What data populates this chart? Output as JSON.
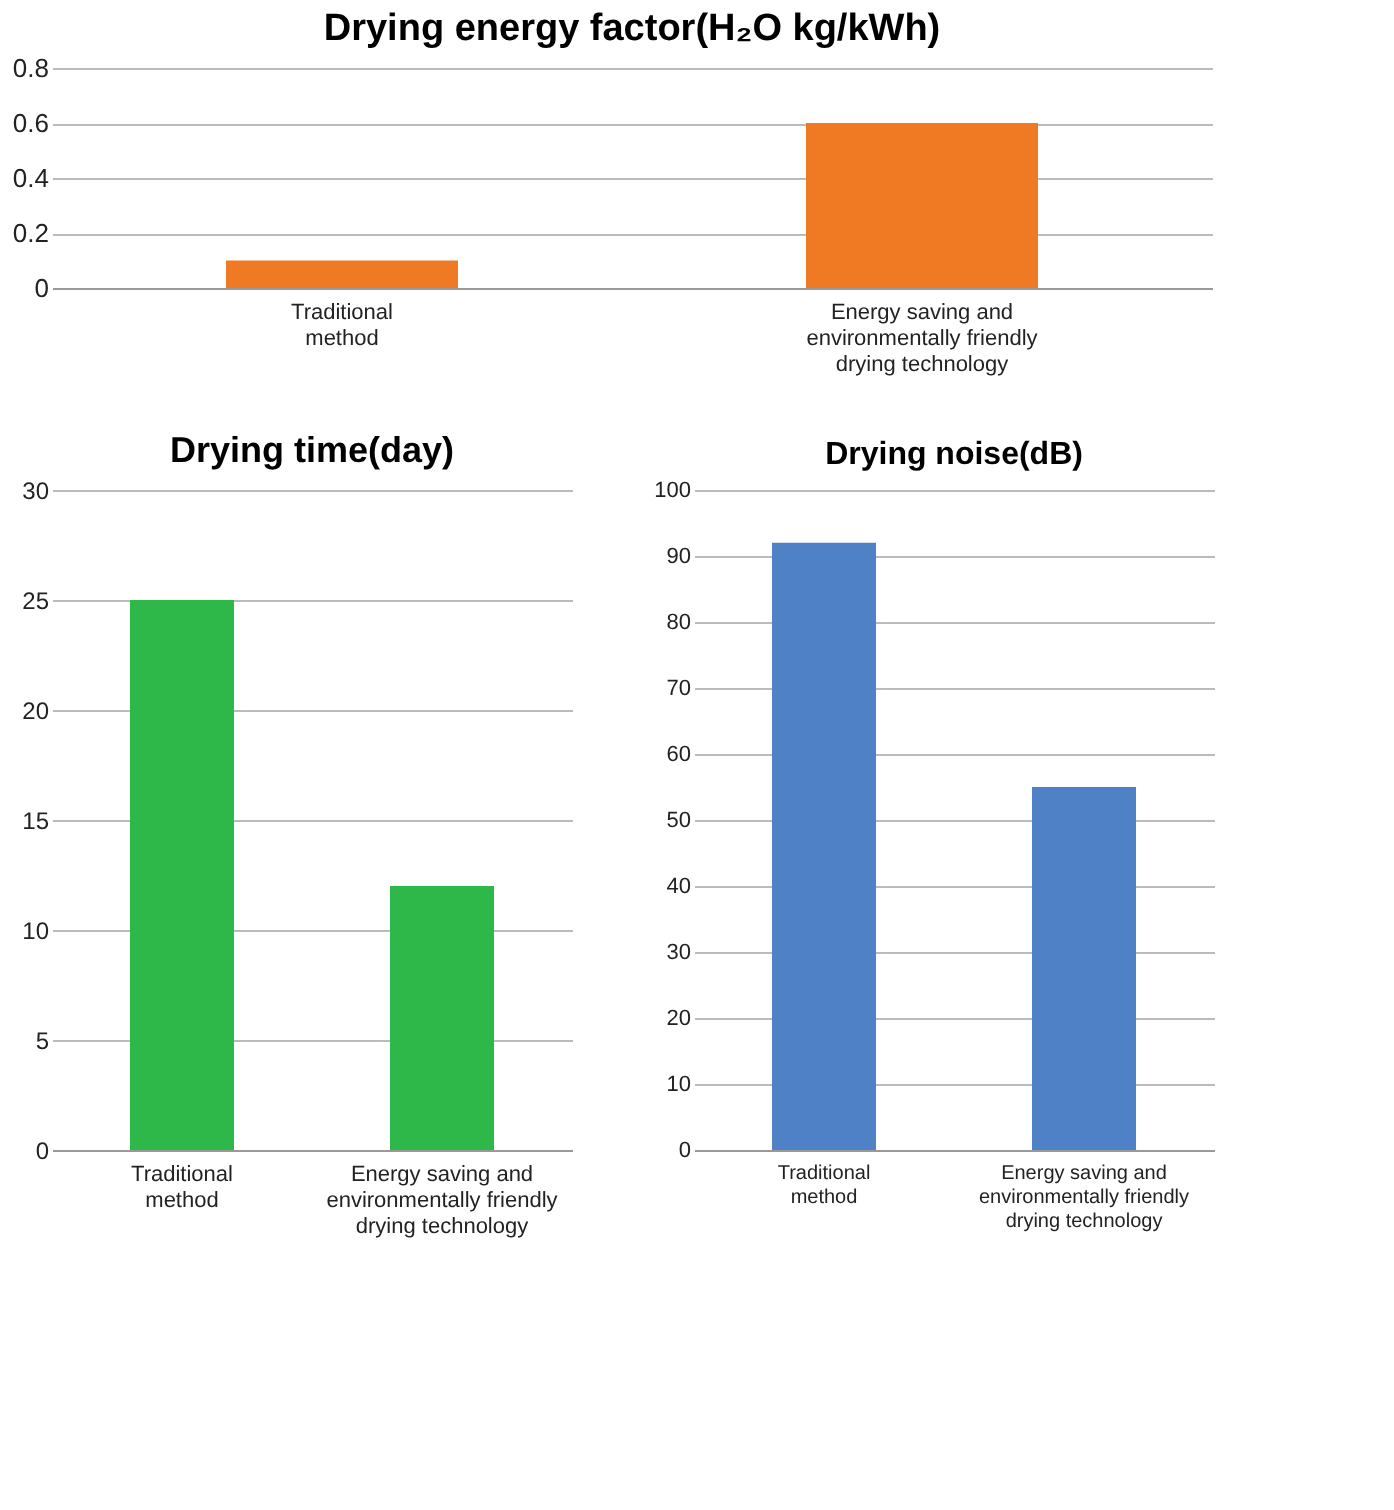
{
  "chart_data": [
    {
      "type": "bar",
      "title": "Drying energy factor(H₂O kg/kWh)",
      "categories": [
        "Traditional method",
        "Energy saving and environmentally friendly drying technology"
      ],
      "values": [
        0.1,
        0.6
      ],
      "color": "#f07a23",
      "ylim": [
        0,
        0.8
      ],
      "yticks": [
        0,
        0.2,
        0.4,
        0.6,
        0.8
      ],
      "grid": "y"
    },
    {
      "type": "bar",
      "title": "Drying time(day)",
      "categories": [
        "Traditional method",
        "Energy saving and environmentally friendly drying technology"
      ],
      "values": [
        25,
        12
      ],
      "color": "#2fb84a",
      "ylim": [
        0,
        30
      ],
      "yticks": [
        0,
        5,
        10,
        15,
        20,
        25,
        30
      ],
      "grid": "y"
    },
    {
      "type": "bar",
      "title": "Drying noise(dB)",
      "categories": [
        "Traditional method",
        "Energy saving and environmentally friendly drying technology"
      ],
      "values": [
        92,
        55
      ],
      "color": "#4f81c6",
      "ylim": [
        0,
        100
      ],
      "yticks": [
        0,
        10,
        20,
        30,
        40,
        50,
        60,
        70,
        80,
        90,
        100
      ],
      "grid": "y"
    }
  ]
}
